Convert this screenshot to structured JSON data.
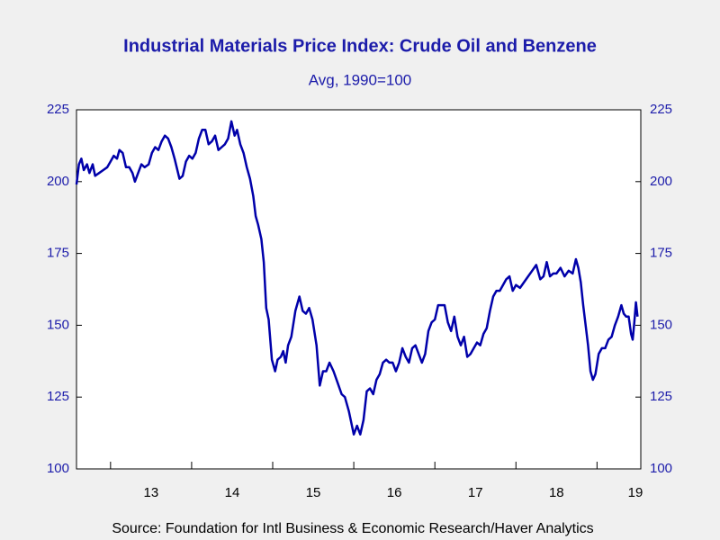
{
  "chart_data": {
    "type": "line",
    "title": "Industrial Materials Price Index: Crude Oil and Benzene",
    "subtitle": "Avg, 1990=100",
    "source": "Source:  Foundation for Intl Business & Economic Research/Haver Analytics",
    "color": "#0000aa",
    "xlim": [
      2012.58,
      2019.54
    ],
    "xticks": [
      {
        "value": 2013,
        "label": "13"
      },
      {
        "value": 2014,
        "label": "14"
      },
      {
        "value": 2015,
        "label": "15"
      },
      {
        "value": 2016,
        "label": "16"
      },
      {
        "value": 2017,
        "label": "17"
      },
      {
        "value": 2018,
        "label": "18"
      },
      {
        "value": 2019,
        "label": "19"
      }
    ],
    "ylim": [
      100,
      225
    ],
    "yticks": [
      100,
      125,
      150,
      175,
      200,
      225
    ],
    "x": [
      2012.58,
      2012.61,
      2012.64,
      2012.67,
      2012.71,
      2012.74,
      2012.78,
      2012.81,
      2012.86,
      2012.91,
      2012.96,
      2013.0,
      2013.04,
      2013.08,
      2013.11,
      2013.15,
      2013.19,
      2013.23,
      2013.27,
      2013.3,
      2013.34,
      2013.38,
      2013.42,
      2013.47,
      2013.51,
      2013.55,
      2013.59,
      2013.63,
      2013.67,
      2013.71,
      2013.75,
      2013.79,
      2013.85,
      2013.89,
      2013.93,
      2013.97,
      2014.01,
      2014.05,
      2014.09,
      2014.13,
      2014.17,
      2014.21,
      2014.25,
      2014.29,
      2014.33,
      2014.37,
      2014.41,
      2014.45,
      2014.49,
      2014.53,
      2014.56,
      2014.6,
      2014.64,
      2014.68,
      2014.72,
      2014.76,
      2014.79,
      2014.82,
      2014.86,
      2014.89,
      2014.92,
      2014.95,
      2014.99,
      2015.03,
      2015.06,
      2015.1,
      2015.13,
      2015.16,
      2015.19,
      2015.23,
      2015.28,
      2015.33,
      2015.37,
      2015.41,
      2015.45,
      2015.49,
      2015.54,
      2015.58,
      2015.62,
      2015.66,
      2015.7,
      2015.75,
      2015.8,
      2015.85,
      2015.89,
      2015.94,
      2016.0,
      2016.04,
      2016.08,
      2016.12,
      2016.16,
      2016.2,
      2016.24,
      2016.28,
      2016.32,
      2016.36,
      2016.4,
      2016.44,
      2016.48,
      2016.52,
      2016.56,
      2016.6,
      2016.64,
      2016.68,
      2016.72,
      2016.76,
      2016.8,
      2016.84,
      2016.88,
      2016.92,
      2016.96,
      2017.0,
      2017.04,
      2017.08,
      2017.12,
      2017.16,
      2017.2,
      2017.24,
      2017.28,
      2017.32,
      2017.36,
      2017.4,
      2017.44,
      2017.48,
      2017.52,
      2017.56,
      2017.6,
      2017.64,
      2017.68,
      2017.72,
      2017.76,
      2017.8,
      2017.84,
      2017.88,
      2017.92,
      2017.96,
      2018.0,
      2018.05,
      2018.1,
      2018.15,
      2018.2,
      2018.25,
      2018.3,
      2018.34,
      2018.38,
      2018.42,
      2018.46,
      2018.5,
      2018.55,
      2018.6,
      2018.65,
      2018.7,
      2018.74,
      2018.77,
      2018.8,
      2018.83,
      2018.86,
      2018.89,
      2018.92,
      2018.95,
      2018.98,
      2019.02,
      2019.06,
      2019.1,
      2019.14,
      2019.18,
      2019.22,
      2019.26,
      2019.3,
      2019.33,
      2019.36,
      2019.39,
      2019.42,
      2019.44,
      2019.46,
      2019.48,
      2019.5
    ],
    "values": [
      199,
      206,
      208,
      204,
      206,
      203,
      206,
      202,
      203,
      204,
      205,
      207,
      209,
      208,
      211,
      210,
      205,
      205,
      203,
      200,
      203,
      206,
      205,
      206,
      210,
      212,
      211,
      214,
      216,
      215,
      212,
      208,
      201,
      202,
      207,
      209,
      208,
      210,
      215,
      218,
      218,
      213,
      214,
      216,
      211,
      212,
      213,
      215,
      221,
      216,
      218,
      213,
      210,
      205,
      201,
      195,
      188,
      185,
      180,
      172,
      156,
      152,
      138,
      134,
      138,
      139,
      141,
      137,
      143,
      146,
      155,
      160,
      155,
      154,
      156,
      152,
      143,
      129,
      134,
      134,
      137,
      134,
      130,
      126,
      125,
      120,
      112,
      115,
      112,
      117,
      127,
      128,
      126,
      131,
      133,
      137,
      138,
      137,
      137,
      134,
      137,
      142,
      139,
      137,
      142,
      143,
      140,
      137,
      140,
      148,
      151,
      152,
      157,
      157,
      157,
      151,
      148,
      153,
      146,
      143,
      146,
      139,
      140,
      142,
      144,
      143,
      147,
      149,
      155,
      160,
      162,
      162,
      164,
      166,
      167,
      162,
      164,
      163,
      165,
      167,
      169,
      171,
      166,
      167,
      172,
      167,
      168,
      168,
      170,
      167,
      169,
      168,
      173,
      170,
      165,
      157,
      150,
      143,
      134,
      131,
      133,
      140,
      142,
      142,
      145,
      146,
      150,
      153,
      157,
      154,
      153,
      153,
      147,
      145,
      151,
      158,
      153
    ]
  }
}
